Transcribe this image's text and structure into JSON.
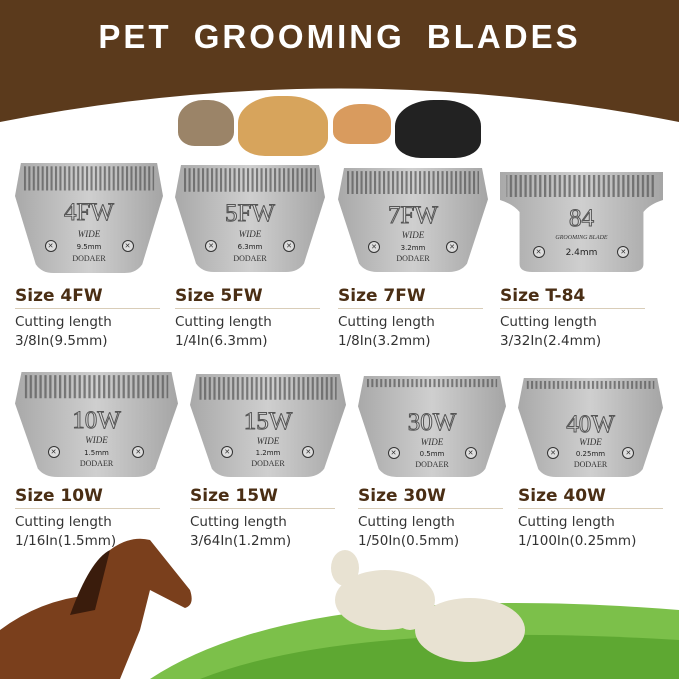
{
  "title": "PET GROOMING BLADES",
  "colors": {
    "header_brown": "#5b3a1c",
    "label_brown": "#4a2e14",
    "blade_steel": "#b8b8b8"
  },
  "blade_common": {
    "wide": "WIDE",
    "brand": "DODAER",
    "grooming_blade": "GROOMING BLADE"
  },
  "blades": [
    {
      "code": "4FW",
      "blade_mm": "9.5mm",
      "size": "Size 4FW",
      "cutting": "Cutting length",
      "length": "3/8In(9.5mm)"
    },
    {
      "code": "5FW",
      "blade_mm": "6.3mm",
      "size": "Size 5FW",
      "cutting": "Cutting length",
      "length": "1/4In(6.3mm)"
    },
    {
      "code": "7FW",
      "blade_mm": "3.2mm",
      "size": "Size 7FW",
      "cutting": "Cutting length",
      "length": "1/8In(3.2mm)"
    },
    {
      "code": "84",
      "blade_mm": "2.4mm",
      "size": "Size T-84",
      "cutting": "Cutting length",
      "length": "3/32In(2.4mm)"
    },
    {
      "code": "10W",
      "blade_mm": "1.5mm",
      "size": "Size 10W",
      "cutting": "Cutting length",
      "length": "1/16In(1.5mm)"
    },
    {
      "code": "15W",
      "blade_mm": "1.2mm",
      "size": "Size 15W",
      "cutting": "Cutting length",
      "length": "3/64In(1.2mm)"
    },
    {
      "code": "30W",
      "blade_mm": "0.5mm",
      "size": "Size 30W",
      "cutting": "Cutting length",
      "length": "1/50In(0.5mm)"
    },
    {
      "code": "40W",
      "blade_mm": "0.25mm",
      "size": "Size 40W",
      "cutting": "Cutting length",
      "length": "1/100In(0.25mm)"
    }
  ]
}
